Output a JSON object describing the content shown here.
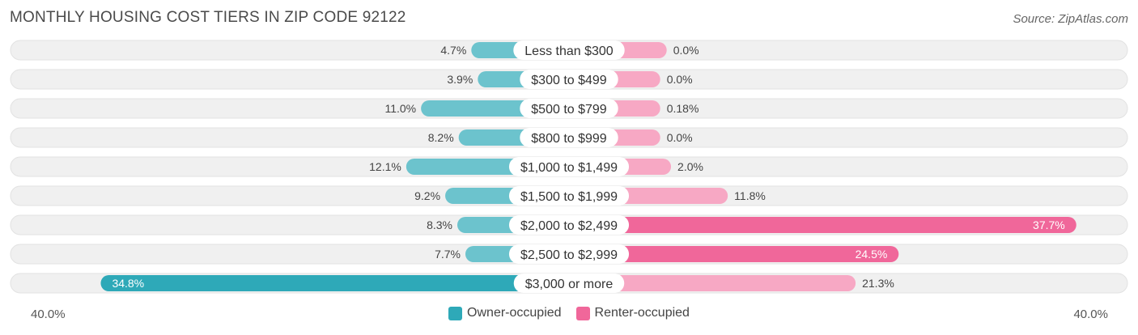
{
  "title": "MONTHLY HOUSING COST TIERS IN ZIP CODE 92122",
  "source": "Source: ZipAtlas.com",
  "axis": {
    "left_label": "40.0%",
    "right_label": "40.0%"
  },
  "legend": {
    "owner_label": "Owner-occupied",
    "renter_label": "Renter-occupied"
  },
  "colors": {
    "owner": "#6cc3cd",
    "owner_strong": "#2ea9b8",
    "renter": "#f7a8c4",
    "renter_strong": "#f0679a",
    "row_bg": "#f0f0f0"
  },
  "chart_data": {
    "type": "bar",
    "orientation": "diverging-horizontal",
    "title": "MONTHLY HOUSING COST TIERS IN ZIP CODE 92122",
    "xlim": [
      -40,
      40
    ],
    "categories": [
      "Less than $300",
      "$300 to $499",
      "$500 to $799",
      "$800 to $999",
      "$1,000 to $1,499",
      "$1,500 to $1,999",
      "$2,000 to $2,499",
      "$2,500 to $2,999",
      "$3,000 or more"
    ],
    "series": [
      {
        "name": "Owner-occupied",
        "side": "left",
        "values": [
          4.7,
          3.9,
          11.0,
          8.2,
          12.1,
          9.2,
          8.3,
          7.7,
          34.8
        ],
        "labels": [
          "4.7%",
          "3.9%",
          "11.0%",
          "8.2%",
          "12.1%",
          "9.2%",
          "8.3%",
          "7.7%",
          "34.8%"
        ]
      },
      {
        "name": "Renter-occupied",
        "side": "right",
        "values": [
          0.0,
          0.0,
          0.18,
          0.0,
          2.0,
          11.8,
          37.7,
          24.5,
          21.3
        ],
        "labels": [
          "0.0%",
          "0.0%",
          "0.18%",
          "0.0%",
          "2.0%",
          "11.8%",
          "37.7%",
          "24.5%",
          "21.3%"
        ]
      }
    ],
    "legend_position": "bottom-center"
  }
}
